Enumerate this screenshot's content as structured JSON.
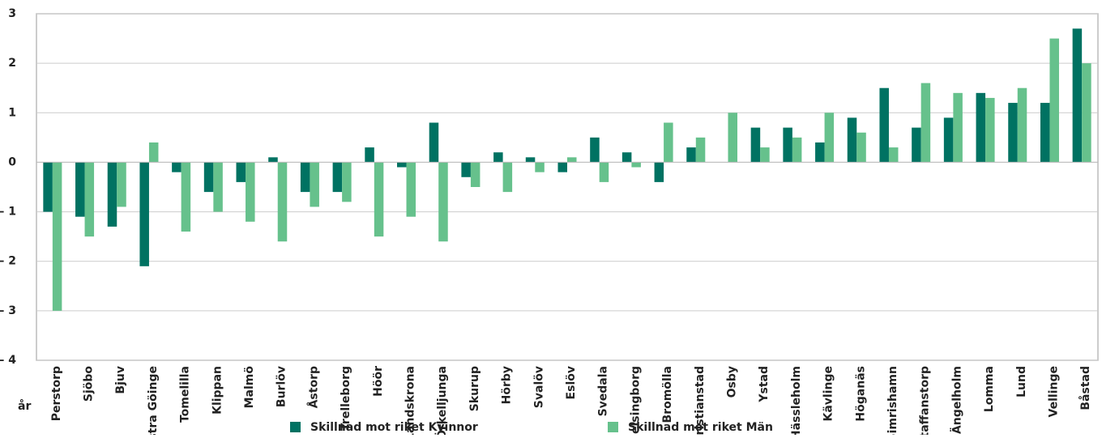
{
  "chart_data": {
    "type": "bar",
    "categories": [
      "Perstorp",
      "Sjöbo",
      "Bjuv",
      "Östra Göinge",
      "Tomelilla",
      "Klippan",
      "Malmö",
      "Burlöv",
      "Åstorp",
      "Trelleborg",
      "Höör",
      "Landskrona",
      "Örkelljunga",
      "Skurup",
      "Hörby",
      "Svalöv",
      "Eslöv",
      "Svedala",
      "Helsingborg",
      "Bromölla",
      "Kristianstad",
      "Osby",
      "Ystad",
      "Hässleholm",
      "Kävlinge",
      "Höganäs",
      "Simrishamn",
      "Staffanstorp",
      "Ängelholm",
      "Lomma",
      "Lund",
      "Vellinge",
      "Båstad"
    ],
    "series": [
      {
        "name": "Skillnad mot riket Kvinnor",
        "color": "#007262",
        "values": [
          -1,
          -1.1,
          -1.3,
          -2.1,
          -0.2,
          -0.6,
          -0.4,
          0.1,
          -0.6,
          -0.6,
          0.3,
          -0.1,
          0.8,
          -0.3,
          0.2,
          0.1,
          -0.2,
          0.5,
          0.2,
          -0.4,
          0.3,
          0,
          0.7,
          0.7,
          0.4,
          0.9,
          1.5,
          0.7,
          0.9,
          1.4,
          1.2,
          1.2,
          2.7
        ]
      },
      {
        "name": "Skillnad mot riket Män",
        "color": "#66c18c",
        "values": [
          -3,
          -1.5,
          -0.9,
          0.4,
          -1.4,
          -1.0,
          -1.2,
          -1.6,
          -0.9,
          -0.8,
          -1.5,
          -1.1,
          -1.6,
          -0.5,
          -0.6,
          -0.2,
          0.1,
          -0.4,
          -0.1,
          0.8,
          0.5,
          1.0,
          0.3,
          0.5,
          1.0,
          0.6,
          0.3,
          1.6,
          1.4,
          1.3,
          1.5,
          2.5,
          2.0
        ]
      }
    ],
    "ylabel": "år",
    "ylim": [
      -4,
      3
    ],
    "yticks": [
      {
        "value": -4,
        "label": "– 4"
      },
      {
        "value": -3,
        "label": "– 3"
      },
      {
        "value": -2,
        "label": "– 2"
      },
      {
        "value": -1,
        "label": "– 1"
      },
      0,
      1,
      2,
      3
    ],
    "grid": true,
    "legend": "bottom"
  }
}
